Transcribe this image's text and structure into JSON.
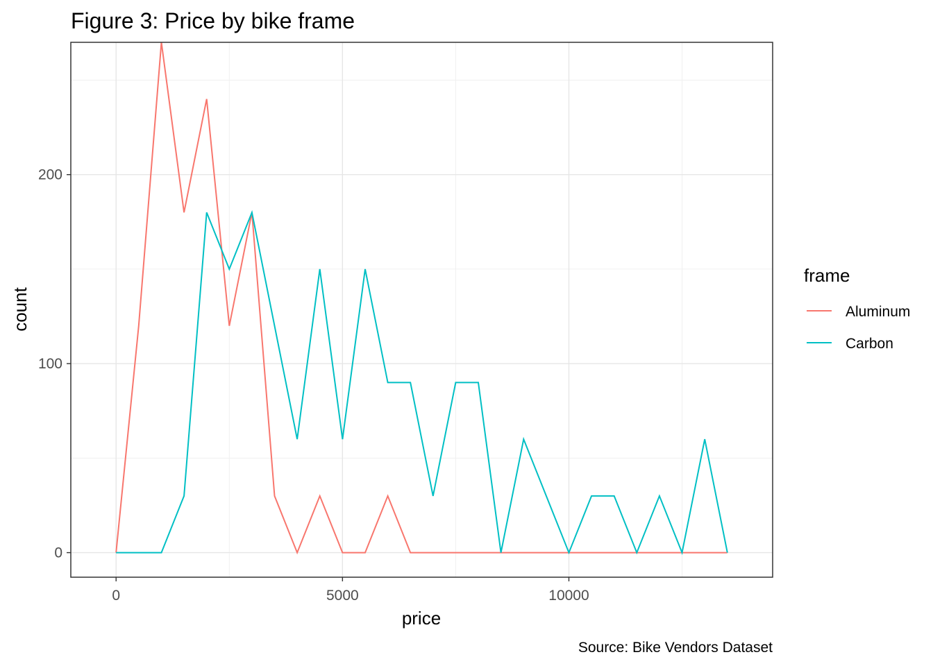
{
  "chart_data": {
    "type": "line",
    "title": "Figure 3: Price by bike frame",
    "xlabel": "price",
    "ylabel": "count",
    "caption": "Source: Bike Vendors Dataset",
    "xlim": [
      -1000,
      14500
    ],
    "ylim": [
      -13,
      270
    ],
    "x_ticks": [
      0,
      5000,
      10000
    ],
    "y_ticks": [
      0,
      100,
      200
    ],
    "grid": true,
    "legend": {
      "title": "frame",
      "position": "right"
    },
    "series": [
      {
        "name": "Aluminum",
        "color": "#F8766D",
        "x": [
          0,
          500,
          1000,
          1500,
          2000,
          2500,
          3000,
          3500,
          4000,
          4500,
          5000,
          5500,
          6000,
          6500,
          7000,
          7500,
          8000,
          8500,
          9000,
          9500,
          10000,
          10500,
          11000,
          11500,
          12000,
          12500,
          13000,
          13500
        ],
        "y": [
          0,
          120,
          270,
          180,
          240,
          120,
          180,
          30,
          0,
          30,
          0,
          0,
          30,
          0,
          0,
          0,
          0,
          0,
          0,
          0,
          0,
          0,
          0,
          0,
          0,
          0,
          0,
          0
        ]
      },
      {
        "name": "Carbon",
        "color": "#00BFC4",
        "x": [
          0,
          500,
          1000,
          1500,
          2000,
          2500,
          3000,
          3500,
          4000,
          4500,
          5000,
          5500,
          6000,
          6500,
          7000,
          7500,
          8000,
          8500,
          9000,
          9500,
          10000,
          10500,
          11000,
          11500,
          12000,
          12500,
          13000,
          13500
        ],
        "y": [
          0,
          0,
          0,
          30,
          180,
          150,
          180,
          120,
          60,
          150,
          60,
          150,
          90,
          90,
          30,
          90,
          90,
          0,
          60,
          30,
          0,
          30,
          30,
          0,
          30,
          0,
          60,
          0
        ]
      }
    ]
  }
}
